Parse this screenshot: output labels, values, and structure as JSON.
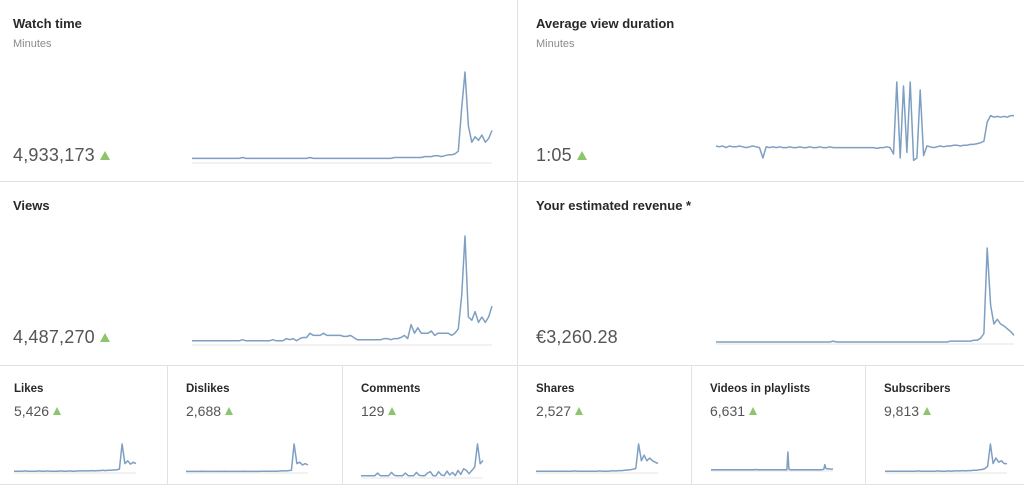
{
  "colors": {
    "sparkline": "#7f9fc2",
    "up_indicator": "#8cc56b",
    "divider": "#e2e2e2"
  },
  "icons": {
    "trend": "triangle-up-icon"
  },
  "big_cards": [
    {
      "key": "watch_time",
      "title": "Watch time",
      "subtitle": "Minutes",
      "value": "4,933,173",
      "series": [
        4,
        4,
        4,
        4,
        4,
        4,
        4,
        4,
        4,
        4,
        4,
        4,
        4,
        4,
        4,
        5,
        4,
        4,
        4,
        4,
        4,
        4,
        4,
        4,
        4,
        4,
        4,
        4,
        4,
        4,
        4,
        4,
        4,
        4,
        4,
        5,
        4,
        4,
        4,
        4,
        4,
        4,
        4,
        4,
        4,
        4,
        4,
        4,
        4,
        4,
        4,
        4,
        4,
        4,
        4,
        4,
        4,
        4,
        4,
        4,
        5,
        5,
        5,
        5,
        5,
        5,
        5,
        5,
        5,
        6,
        6,
        6,
        7,
        7,
        6,
        7,
        8,
        8,
        9,
        12,
        60,
        100,
        40,
        22,
        28,
        24,
        30,
        22,
        26,
        35
      ]
    },
    {
      "key": "avg_view_duration",
      "title": "Average view duration",
      "subtitle": "Minutes",
      "value": "1:05",
      "series": [
        20,
        19,
        20,
        18,
        20,
        19,
        19,
        20,
        19,
        18,
        19,
        20,
        19,
        18,
        5,
        19,
        18,
        19,
        18,
        19,
        18,
        18,
        19,
        18,
        18,
        19,
        18,
        18,
        19,
        18,
        18,
        19,
        18,
        18,
        19,
        18,
        18,
        18,
        18,
        18,
        18,
        18,
        18,
        18,
        18,
        18,
        18,
        18,
        17,
        18,
        18,
        19,
        18,
        10,
        100,
        5,
        95,
        12,
        100,
        2,
        5,
        90,
        8,
        20,
        19,
        18,
        19,
        20,
        19,
        20,
        20,
        21,
        21,
        20,
        21,
        21,
        22,
        22,
        23,
        24,
        26,
        50,
        58,
        56,
        57,
        56,
        57,
        56,
        58,
        58
      ]
    },
    {
      "key": "views",
      "title": "Views",
      "subtitle": "",
      "value": "4,487,270",
      "series": [
        3,
        3,
        3,
        3,
        3,
        3,
        3,
        3,
        3,
        3,
        3,
        3,
        3,
        3,
        3,
        4,
        3,
        3,
        3,
        3,
        3,
        3,
        3,
        3,
        4,
        3,
        3,
        3,
        5,
        4,
        5,
        3,
        5,
        6,
        6,
        10,
        8,
        8,
        8,
        10,
        8,
        8,
        8,
        8,
        8,
        7,
        7,
        8,
        6,
        4,
        4,
        4,
        4,
        4,
        4,
        4,
        4,
        5,
        5,
        4,
        5,
        5,
        6,
        8,
        5,
        18,
        10,
        15,
        10,
        10,
        10,
        12,
        8,
        10,
        10,
        10,
        10,
        8,
        10,
        14,
        45,
        100,
        25,
        22,
        30,
        20,
        25,
        20,
        25,
        35
      ]
    },
    {
      "key": "est_revenue",
      "title": "Your estimated revenue *",
      "subtitle": "",
      "value": "€3,260.28",
      "series": [
        1,
        1,
        1,
        1,
        1,
        1,
        1,
        1,
        1,
        1,
        1,
        1,
        1,
        1,
        1,
        1,
        1,
        1,
        1,
        1,
        1,
        1,
        1,
        1,
        1,
        1,
        1,
        1,
        1,
        1,
        1,
        1,
        1,
        1,
        1,
        2,
        1,
        1,
        1,
        1,
        1,
        1,
        1,
        1,
        1,
        1,
        1,
        1,
        1,
        1,
        1,
        1,
        1,
        1,
        1,
        1,
        1,
        1,
        1,
        1,
        1,
        1,
        1,
        1,
        1,
        1,
        1,
        1,
        1,
        1,
        2,
        2,
        2,
        2,
        2,
        2,
        2,
        3,
        3,
        5,
        10,
        100,
        40,
        20,
        25,
        20,
        18,
        15,
        12,
        8
      ]
    }
  ],
  "small_cards": [
    {
      "key": "likes",
      "title": "Likes",
      "value": "5,426",
      "series": [
        3,
        3,
        3,
        3,
        4,
        3,
        3,
        3,
        3,
        4,
        3,
        3,
        4,
        3,
        3,
        3,
        3,
        4,
        3,
        3,
        4,
        3,
        3,
        4,
        4,
        4,
        4,
        4,
        5,
        4,
        5,
        5,
        6,
        5,
        6,
        6,
        7,
        8,
        10,
        100,
        30,
        40,
        28,
        35,
        30
      ]
    },
    {
      "key": "dislikes",
      "title": "Dislikes",
      "value": "2,688",
      "series": [
        2,
        2,
        2,
        2,
        2,
        2,
        3,
        2,
        2,
        2,
        2,
        2,
        2,
        2,
        3,
        2,
        2,
        2,
        2,
        2,
        2,
        3,
        2,
        2,
        2,
        2,
        2,
        3,
        3,
        3,
        3,
        3,
        3,
        3,
        4,
        4,
        4,
        5,
        6,
        100,
        30,
        35,
        25,
        30,
        25
      ]
    },
    {
      "key": "comments",
      "title": "Comments",
      "value": "129",
      "series": [
        4,
        4,
        4,
        4,
        4,
        4,
        12,
        4,
        4,
        4,
        4,
        14,
        5,
        4,
        4,
        4,
        12,
        4,
        4,
        4,
        14,
        5,
        4,
        4,
        12,
        16,
        4,
        4,
        16,
        6,
        4,
        18,
        6,
        14,
        4,
        20,
        8,
        25,
        20,
        10,
        20,
        30,
        100,
        40,
        50
      ]
    },
    {
      "key": "shares",
      "title": "Shares",
      "value": "2,527",
      "series": [
        3,
        3,
        3,
        3,
        3,
        3,
        3,
        3,
        3,
        3,
        3,
        3,
        3,
        3,
        4,
        3,
        3,
        3,
        3,
        3,
        3,
        3,
        3,
        4,
        3,
        3,
        3,
        4,
        4,
        4,
        5,
        5,
        6,
        7,
        8,
        10,
        12,
        100,
        40,
        60,
        40,
        50,
        40,
        35,
        30
      ]
    },
    {
      "key": "videos_in_playlists",
      "title": "Videos in playlists",
      "value": "6,631",
      "series": [
        1,
        1,
        1,
        1,
        1,
        1,
        1,
        1,
        1,
        1,
        1,
        1,
        1,
        1,
        1,
        1,
        1,
        1,
        1,
        1,
        1,
        1,
        1,
        1,
        1,
        1,
        1,
        1,
        1,
        1,
        1,
        1,
        1,
        1,
        1,
        1,
        1,
        1,
        1,
        1,
        1,
        1,
        2,
        3,
        2,
        2,
        1,
        1,
        1,
        1,
        1,
        1,
        1,
        1,
        1,
        1,
        1,
        1,
        1,
        1,
        1,
        1,
        1,
        1,
        1,
        1,
        1,
        1,
        1,
        1,
        1,
        1,
        1,
        1,
        1,
        100,
        5,
        2,
        1,
        1,
        1,
        1,
        1,
        1,
        1,
        1,
        1,
        1,
        1,
        1,
        1,
        1,
        1,
        1,
        1,
        1,
        1,
        1,
        1,
        1,
        1,
        1,
        1,
        1,
        1,
        1,
        1,
        1,
        2,
        3,
        4,
        30,
        10,
        6,
        8,
        6,
        5,
        5,
        5,
        5
      ]
    },
    {
      "key": "subscribers",
      "title": "Subscribers",
      "value": "9,813",
      "series": [
        3,
        3,
        3,
        3,
        3,
        3,
        3,
        3,
        3,
        3,
        3,
        3,
        4,
        3,
        3,
        3,
        3,
        3,
        3,
        4,
        3,
        3,
        3,
        4,
        3,
        4,
        4,
        4,
        5,
        4,
        5,
        5,
        6,
        6,
        8,
        9,
        12,
        20,
        100,
        30,
        50,
        35,
        40,
        30,
        30
      ]
    }
  ]
}
